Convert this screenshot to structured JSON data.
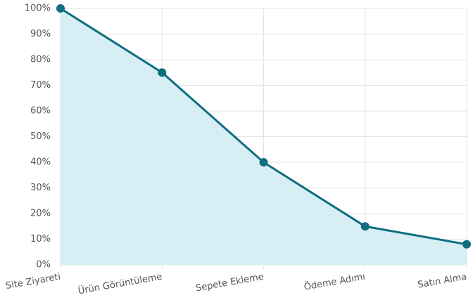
{
  "chart_data": {
    "type": "area",
    "categories": [
      "Site Ziyareti",
      "Ürün Görüntüleme",
      "Sepete Ekleme",
      "Ödeme Adımı",
      "Satın Alma"
    ],
    "values": [
      100,
      75,
      40,
      15,
      8
    ],
    "color": "#0f6e80",
    "fill_color": "#d7eef5",
    "ylim": [
      0,
      100
    ],
    "yticks": [
      {
        "value": 0,
        "label": "0%"
      },
      {
        "value": 10,
        "label": "10%"
      },
      {
        "value": 20,
        "label": "20%"
      },
      {
        "value": 30,
        "label": "30%"
      },
      {
        "value": 40,
        "label": "40%"
      },
      {
        "value": 50,
        "label": "50%"
      },
      {
        "value": 60,
        "label": "60%"
      },
      {
        "value": 70,
        "label": "70%"
      },
      {
        "value": 80,
        "label": "80%"
      },
      {
        "value": 90,
        "label": "90%"
      },
      {
        "value": 100,
        "label": "100%"
      }
    ],
    "grid": true
  }
}
